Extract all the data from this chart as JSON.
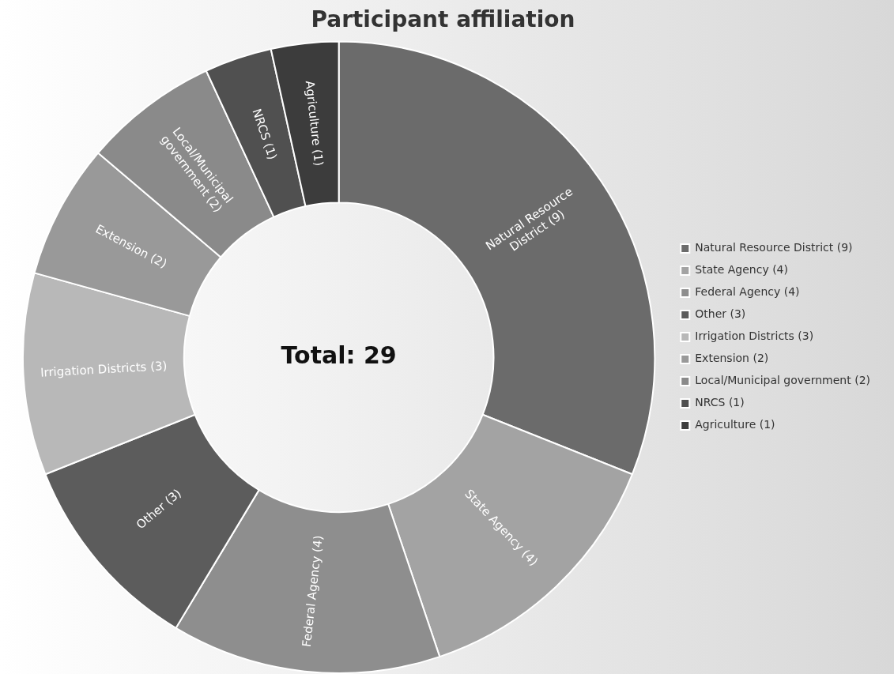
{
  "chart_data": {
    "type": "donut",
    "title": "Participant affiliation",
    "categories": [
      "Natural Resource District (9)",
      "State Agency (4)",
      "Federal Agency (4)",
      "Other (3)",
      "Irrigation Districts (3)",
      "Extension (2)",
      "Local/Municipal government (2)",
      "NRCS (1)",
      "Agriculture (1)"
    ],
    "values": [
      9,
      4,
      4,
      3,
      3,
      2,
      2,
      1,
      1
    ],
    "colors": [
      "#6b6b6b",
      "#a3a3a3",
      "#8e8e8e",
      "#5c5c5c",
      "#b8b8b8",
      "#999999",
      "#8a8a8a",
      "#505050",
      "#3c3c3c"
    ],
    "annotations": [
      "Total: 29"
    ],
    "legend": "right"
  }
}
